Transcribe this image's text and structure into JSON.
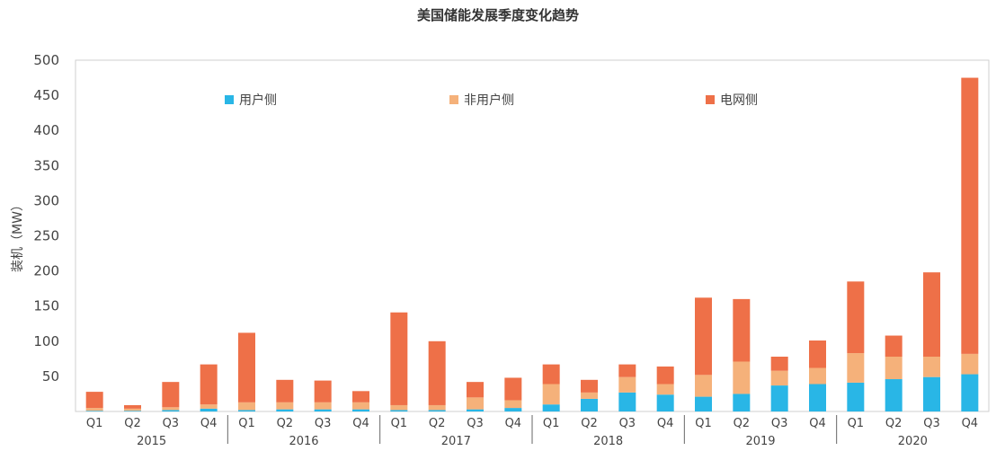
{
  "chart_data": {
    "type": "bar",
    "stacked": true,
    "title": "美国储能发展季度变化趋势",
    "ylabel": "装机（MW）",
    "xlabel": "",
    "ylim": [
      0,
      500
    ],
    "yticks": [
      50,
      100,
      150,
      200,
      250,
      300,
      350,
      400,
      450,
      500
    ],
    "grid": false,
    "legend_position": "top",
    "categories": [
      "Q1",
      "Q2",
      "Q3",
      "Q4",
      "Q1",
      "Q2",
      "Q3",
      "Q4",
      "Q1",
      "Q2",
      "Q3",
      "Q4",
      "Q1",
      "Q2",
      "Q3",
      "Q4",
      "Q1",
      "Q2",
      "Q3",
      "Q4",
      "Q1",
      "Q2",
      "Q3",
      "Q4"
    ],
    "year_groups": [
      {
        "label": "2015",
        "count": 4
      },
      {
        "label": "2016",
        "count": 4
      },
      {
        "label": "2017",
        "count": 4
      },
      {
        "label": "2018",
        "count": 4
      },
      {
        "label": "2019",
        "count": 4
      },
      {
        "label": "2020",
        "count": 4
      }
    ],
    "series": [
      {
        "name": "用户侧",
        "color": "#29b6e6",
        "values": [
          1,
          1,
          2,
          4,
          2,
          3,
          3,
          3,
          2,
          2,
          3,
          5,
          10,
          18,
          27,
          24,
          21,
          25,
          37,
          39,
          41,
          46,
          49,
          53
        ]
      },
      {
        "name": "非用户侧",
        "color": "#f5b17a",
        "values": [
          4,
          3,
          4,
          6,
          11,
          10,
          10,
          10,
          7,
          7,
          17,
          11,
          29,
          9,
          22,
          15,
          31,
          46,
          21,
          23,
          42,
          32,
          29,
          29
        ]
      },
      {
        "name": "电网侧",
        "color": "#ee7048",
        "values": [
          23,
          5,
          36,
          57,
          99,
          32,
          31,
          16,
          132,
          91,
          22,
          32,
          28,
          18,
          18,
          25,
          110,
          89,
          20,
          39,
          102,
          30,
          120,
          393
        ]
      }
    ]
  }
}
